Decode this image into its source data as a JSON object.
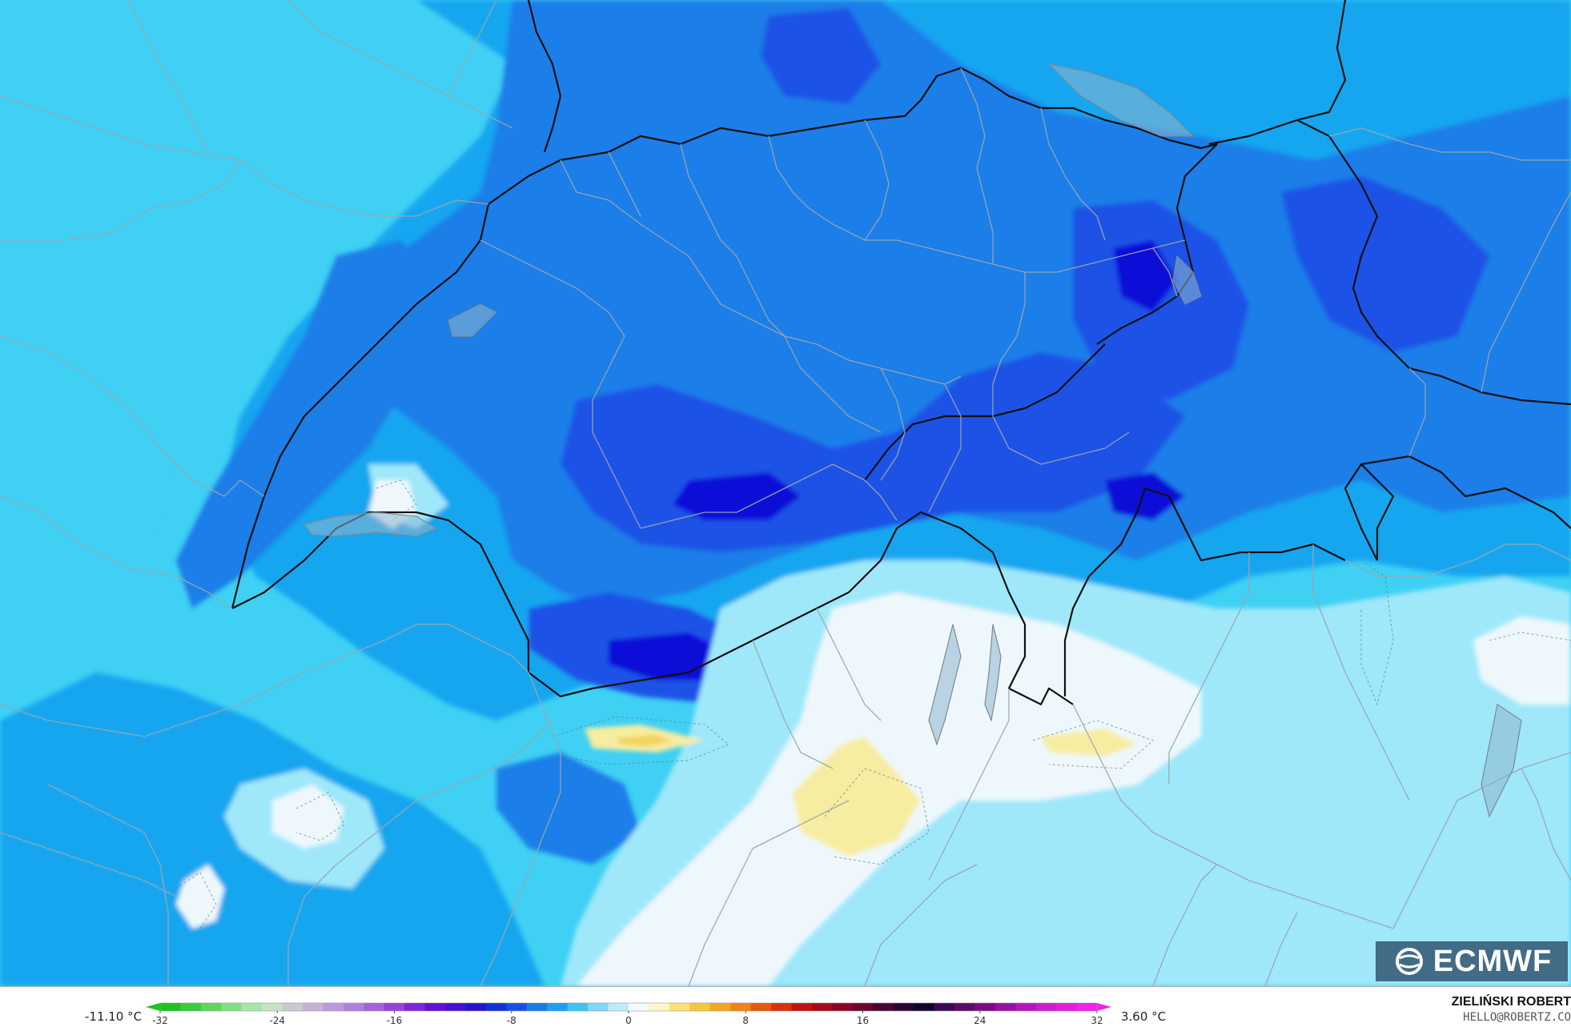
{
  "map": {
    "variable": "temperature",
    "unit": "°C",
    "fill_colors": {
      "t_minus10": "#0a10d8",
      "t_minus8": "#1f52e6",
      "t_minus6": "#1a7ee8",
      "t_minus4": "#12a6f0",
      "t_minus2": "#3fd0f4",
      "t_0": "#9ee8fa",
      "t_plus": "#eef8fc",
      "t_warm": "#f7eda0",
      "t_warm2": "#f2d25a"
    }
  },
  "legend": {
    "min_label": "-11.10 °C",
    "max_label": "3.60 °C",
    "range": [
      -32,
      32
    ],
    "ticks": [
      "-32",
      "-24",
      "-16",
      "-8",
      "0",
      "8",
      "16",
      "24",
      "32"
    ],
    "tick_values": [
      -32,
      -24,
      -16,
      -8,
      0,
      8,
      16,
      24,
      32
    ],
    "colors": [
      "#1ec41e",
      "#3acd3a",
      "#5ed65e",
      "#85df85",
      "#a9e3a9",
      "#c8e2c8",
      "#cbc9cf",
      "#c5b3d3",
      "#bb99d8",
      "#b17fdb",
      "#a561dd",
      "#9640de",
      "#7f22dd",
      "#6010d8",
      "#4410d4",
      "#2614cc",
      "#1230d8",
      "#1450e6",
      "#1b78ec",
      "#1aa0f0",
      "#3ec4f4",
      "#7ed8f8",
      "#bfeafa",
      "#f4fbfd",
      "#fff6c8",
      "#fbe27a",
      "#f5c83a",
      "#f3a81a",
      "#ee8413",
      "#e6580f",
      "#d9300d",
      "#c4120f",
      "#a80a1a",
      "#8a0624",
      "#6a052c",
      "#4a0432",
      "#2a0436",
      "#12062a",
      "#3a0a50",
      "#5a0a6a",
      "#780c84",
      "#9810a0",
      "#b814bc",
      "#d018d0",
      "#e41ce0",
      "#f420ee"
    ]
  },
  "branding": {
    "logo_text": "ECMWF",
    "author": "ZIELIŃSKI ROBERT",
    "email": "HELLO@ROBERTZ.CO"
  }
}
